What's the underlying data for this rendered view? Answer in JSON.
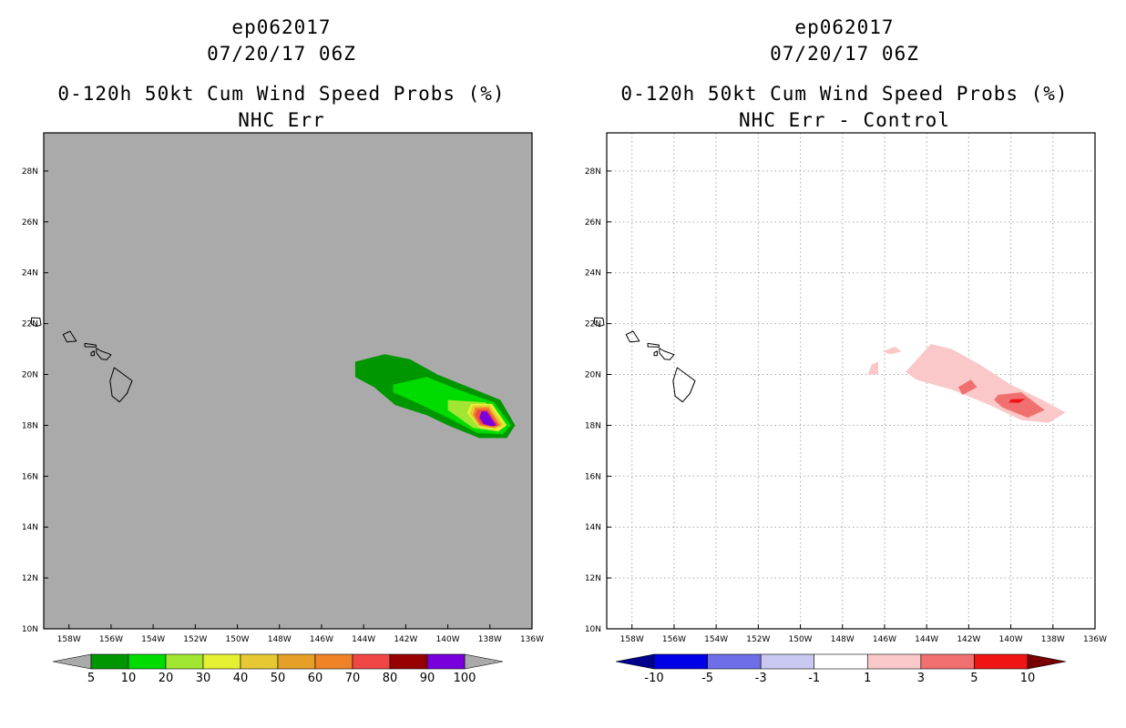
{
  "chart_data": [
    {
      "type": "heatmap",
      "title_lines": [
        "ep062017",
        "07/20/17 06Z",
        "0-120h 50kt Cum Wind Speed Probs (%)",
        "NHC Err"
      ],
      "x_ticks": [
        "158W",
        "156W",
        "154W",
        "152W",
        "150W",
        "148W",
        "146W",
        "144W",
        "142W",
        "140W",
        "138W",
        "136W"
      ],
      "y_ticks": [
        "10N",
        "12N",
        "14N",
        "16N",
        "18N",
        "20N",
        "22N",
        "24N",
        "26N",
        "28N"
      ],
      "x_range": [
        -159.2,
        -136.0
      ],
      "y_range": [
        10.0,
        29.5
      ],
      "grid": false,
      "background": "#aaaaaa",
      "colorbar": {
        "labels": [
          "5",
          "10",
          "20",
          "30",
          "40",
          "50",
          "60",
          "70",
          "80",
          "90",
          "100"
        ],
        "colors": [
          "#009600",
          "#00dc00",
          "#a0e632",
          "#e6f032",
          "#e6c832",
          "#e6a028",
          "#f08228",
          "#f04646",
          "#960000",
          "#7800dc"
        ],
        "under_color": "#aaaaaa",
        "over_color": "#aaaaaa"
      },
      "contours": [
        {
          "level": "5",
          "color": "#009600",
          "points": [
            [
              -144.4,
              20.5
            ],
            [
              -143.0,
              20.8
            ],
            [
              -141.8,
              20.6
            ],
            [
              -140.5,
              20.0
            ],
            [
              -139.0,
              19.5
            ],
            [
              -137.5,
              19.0
            ],
            [
              -136.8,
              18.0
            ],
            [
              -137.2,
              17.5
            ],
            [
              -138.5,
              17.5
            ],
            [
              -140.0,
              18.0
            ],
            [
              -141.0,
              18.4
            ],
            [
              -142.5,
              18.8
            ],
            [
              -143.5,
              19.5
            ],
            [
              -144.4,
              19.9
            ]
          ]
        },
        {
          "level": "10",
          "color": "#00dc00",
          "points": [
            [
              -142.6,
              19.6
            ],
            [
              -141.0,
              19.9
            ],
            [
              -139.5,
              19.4
            ],
            [
              -137.8,
              18.9
            ],
            [
              -137.0,
              18.0
            ],
            [
              -137.4,
              17.65
            ],
            [
              -138.6,
              17.7
            ],
            [
              -140.0,
              18.3
            ],
            [
              -141.5,
              18.9
            ],
            [
              -142.6,
              19.3
            ]
          ]
        },
        {
          "level": "20",
          "color": "#a0e632",
          "points": [
            [
              -140.0,
              19.0
            ],
            [
              -138.2,
              18.9
            ],
            [
              -137.2,
              18.0
            ],
            [
              -137.6,
              17.75
            ],
            [
              -138.8,
              17.9
            ],
            [
              -140.0,
              18.6
            ]
          ]
        },
        {
          "level": "30",
          "color": "#e6f032",
          "points": [
            [
              -138.9,
              18.85
            ],
            [
              -137.9,
              18.85
            ],
            [
              -137.2,
              18.0
            ],
            [
              -137.6,
              17.8
            ],
            [
              -138.5,
              17.9
            ],
            [
              -139.1,
              18.5
            ]
          ]
        },
        {
          "level": "40",
          "color": "#e6c832",
          "points": [
            [
              -138.8,
              18.78
            ],
            [
              -138.0,
              18.78
            ],
            [
              -137.35,
              18.0
            ],
            [
              -137.7,
              17.86
            ],
            [
              -138.5,
              17.96
            ],
            [
              -138.95,
              18.45
            ]
          ]
        },
        {
          "level": "60",
          "color": "#f08228",
          "points": [
            [
              -138.7,
              18.7
            ],
            [
              -138.05,
              18.7
            ],
            [
              -137.5,
              18.0
            ],
            [
              -137.8,
              17.9
            ],
            [
              -138.5,
              18.0
            ],
            [
              -138.8,
              18.4
            ]
          ]
        },
        {
          "level": "70",
          "color": "#f04646",
          "points": [
            [
              -138.6,
              18.62
            ],
            [
              -138.1,
              18.62
            ],
            [
              -137.6,
              18.0
            ],
            [
              -137.85,
              17.94
            ],
            [
              -138.45,
              18.05
            ],
            [
              -138.7,
              18.38
            ]
          ]
        },
        {
          "level": "90",
          "color": "#7800dc",
          "points": [
            [
              -138.4,
              18.55
            ],
            [
              -138.15,
              18.55
            ],
            [
              -137.7,
              18.0
            ],
            [
              -137.95,
              17.97
            ],
            [
              -138.3,
              18.05
            ],
            [
              -138.5,
              18.3
            ]
          ]
        }
      ]
    },
    {
      "type": "heatmap",
      "title_lines": [
        "ep062017",
        "07/20/17 06Z",
        "0-120h 50kt Cum Wind Speed Probs (%)",
        "NHC Err - Control"
      ],
      "x_ticks": [
        "158W",
        "156W",
        "154W",
        "152W",
        "150W",
        "148W",
        "146W",
        "144W",
        "142W",
        "140W",
        "138W",
        "136W"
      ],
      "y_ticks": [
        "10N",
        "12N",
        "14N",
        "16N",
        "18N",
        "20N",
        "22N",
        "24N",
        "26N",
        "28N"
      ],
      "x_range": [
        -159.2,
        -136.0
      ],
      "y_range": [
        10.0,
        29.5
      ],
      "grid": true,
      "background": "#ffffff",
      "colorbar": {
        "labels": [
          "-10",
          "-5",
          "-3",
          "-1",
          "1",
          "3",
          "5",
          "10"
        ],
        "colors": [
          "#0000e6",
          "#6e6ee6",
          "#c8c8f0",
          "#ffffff",
          "#fac8c8",
          "#f07070",
          "#f01414"
        ],
        "under_color": "#00008c",
        "over_color": "#780000"
      },
      "contours": [
        {
          "level": "1",
          "color": "#fac8c8",
          "points": [
            [
              -145.0,
              20.1
            ],
            [
              -143.8,
              21.2
            ],
            [
              -142.8,
              21.0
            ],
            [
              -141.5,
              20.4
            ],
            [
              -140.0,
              19.6
            ],
            [
              -138.5,
              19.0
            ],
            [
              -137.4,
              18.5
            ],
            [
              -138.2,
              18.1
            ],
            [
              -139.5,
              18.2
            ],
            [
              -141.0,
              18.8
            ],
            [
              -142.8,
              19.4
            ],
            [
              -144.5,
              19.8
            ]
          ]
        },
        {
          "level": "1",
          "color": "#fac8c8",
          "points": [
            [
              -146.1,
              20.9
            ],
            [
              -145.5,
              21.1
            ],
            [
              -145.2,
              20.9
            ],
            [
              -145.7,
              20.8
            ]
          ]
        },
        {
          "level": "1",
          "color": "#fac8c8",
          "points": [
            [
              -146.6,
              20.4
            ],
            [
              -146.3,
              20.5
            ],
            [
              -146.3,
              20.0
            ],
            [
              -146.8,
              20.0
            ]
          ]
        },
        {
          "level": "3",
          "color": "#f07070",
          "points": [
            [
              -142.5,
              19.5
            ],
            [
              -141.9,
              19.8
            ],
            [
              -141.6,
              19.5
            ],
            [
              -142.3,
              19.2
            ]
          ]
        },
        {
          "level": "3",
          "color": "#f07070",
          "points": [
            [
              -140.6,
              19.2
            ],
            [
              -139.5,
              19.3
            ],
            [
              -138.4,
              18.6
            ],
            [
              -139.2,
              18.3
            ],
            [
              -140.4,
              18.7
            ],
            [
              -140.8,
              19.0
            ]
          ]
        },
        {
          "level": "5",
          "color": "#f01414",
          "points": [
            [
              -140.0,
              19.02
            ],
            [
              -139.3,
              19.05
            ],
            [
              -139.6,
              18.88
            ],
            [
              -140.1,
              18.9
            ]
          ]
        }
      ]
    }
  ]
}
